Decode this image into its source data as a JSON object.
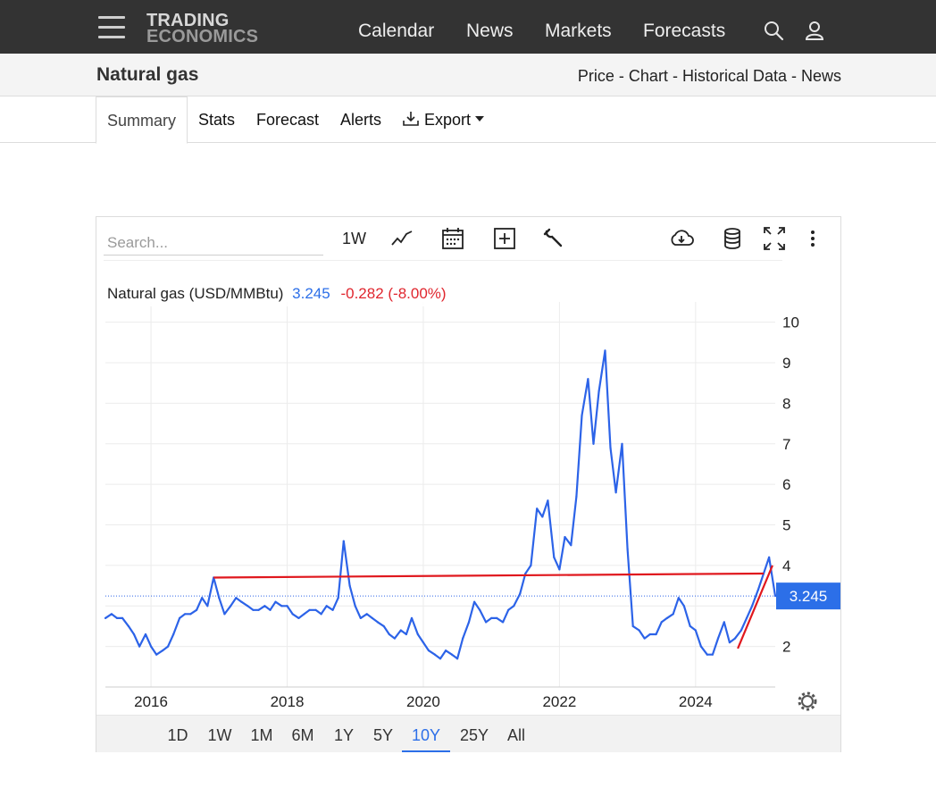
{
  "header": {
    "logo_line1": "TRADING",
    "logo_line2": "ECONOMICS",
    "nav": [
      {
        "label": "Calendar"
      },
      {
        "label": "News"
      },
      {
        "label": "Markets"
      },
      {
        "label": "Forecasts"
      }
    ],
    "icons": [
      "menu-icon",
      "search-icon",
      "user-icon"
    ]
  },
  "subheader": {
    "title": "Natural gas",
    "links": [
      "Price",
      "Chart",
      "Historical Data",
      "News"
    ],
    "separator": " - "
  },
  "tabs": [
    {
      "label": "Summary",
      "active": true
    },
    {
      "label": "Stats"
    },
    {
      "label": "Forecast"
    },
    {
      "label": "Alerts"
    },
    {
      "label": "Export"
    }
  ],
  "toolbar": {
    "search_placeholder": "Search...",
    "interval_label": "1W",
    "icons": [
      "line-chart-icon",
      "calendar-icon",
      "add-icon",
      "wrench-icon",
      "cloud-download-icon",
      "database-icon",
      "fullscreen-icon",
      "more-icon"
    ]
  },
  "legend": {
    "name": "Natural gas (USD/MMBtu)",
    "price": "3.245",
    "change": "-0.282 (-8.00%)"
  },
  "price_tag": "3.245",
  "colors": {
    "series": "#2c63e8",
    "trendline": "#e0181e",
    "negative": "#e0262e",
    "accent": "#2c6fe8",
    "topbar": "#333333"
  },
  "ranges": [
    {
      "label": "1D"
    },
    {
      "label": "1W"
    },
    {
      "label": "1M"
    },
    {
      "label": "6M"
    },
    {
      "label": "1Y"
    },
    {
      "label": "5Y"
    },
    {
      "label": "10Y",
      "active": true
    },
    {
      "label": "25Y"
    },
    {
      "label": "All"
    }
  ],
  "chart_data": {
    "type": "line",
    "title": "Natural gas (USD/MMBtu)",
    "xlabel": "",
    "ylabel": "",
    "x_ticks": [
      "2016",
      "2018",
      "2020",
      "2022",
      "2024"
    ],
    "y_ticks": [
      2,
      4,
      5,
      6,
      7,
      8,
      9,
      10
    ],
    "xlim": [
      2015.33,
      2025.17
    ],
    "ylim": [
      1.0,
      10.5
    ],
    "grid": true,
    "legend_position": "top-left",
    "series": [
      {
        "name": "Natural gas (USD/MMBtu)",
        "x": [
          2015.33,
          2015.42,
          2015.5,
          2015.58,
          2015.67,
          2015.75,
          2015.83,
          2015.92,
          2016.0,
          2016.08,
          2016.17,
          2016.25,
          2016.33,
          2016.42,
          2016.5,
          2016.58,
          2016.67,
          2016.75,
          2016.83,
          2016.92,
          2017.0,
          2017.08,
          2017.17,
          2017.25,
          2017.33,
          2017.42,
          2017.5,
          2017.58,
          2017.67,
          2017.75,
          2017.83,
          2017.92,
          2018.0,
          2018.08,
          2018.17,
          2018.25,
          2018.33,
          2018.42,
          2018.5,
          2018.58,
          2018.67,
          2018.75,
          2018.83,
          2018.92,
          2019.0,
          2019.08,
          2019.17,
          2019.25,
          2019.33,
          2019.42,
          2019.5,
          2019.58,
          2019.67,
          2019.75,
          2019.83,
          2019.92,
          2020.0,
          2020.08,
          2020.17,
          2020.25,
          2020.33,
          2020.42,
          2020.5,
          2020.58,
          2020.67,
          2020.75,
          2020.83,
          2020.92,
          2021.0,
          2021.08,
          2021.17,
          2021.25,
          2021.33,
          2021.42,
          2021.5,
          2021.58,
          2021.67,
          2021.75,
          2021.83,
          2021.92,
          2022.0,
          2022.08,
          2022.17,
          2022.25,
          2022.33,
          2022.42,
          2022.5,
          2022.58,
          2022.67,
          2022.75,
          2022.83,
          2022.92,
          2023.0,
          2023.08,
          2023.17,
          2023.25,
          2023.33,
          2023.42,
          2023.5,
          2023.58,
          2023.67,
          2023.75,
          2023.83,
          2023.92,
          2024.0,
          2024.08,
          2024.17,
          2024.25,
          2024.33,
          2024.42,
          2024.5,
          2024.58,
          2024.67,
          2024.75,
          2024.83,
          2024.92,
          2025.0,
          2025.08,
          2025.17
        ],
        "values": [
          2.7,
          2.8,
          2.7,
          2.7,
          2.5,
          2.3,
          2.0,
          2.3,
          2.0,
          1.8,
          1.9,
          2.0,
          2.3,
          2.7,
          2.8,
          2.8,
          2.9,
          3.2,
          3.0,
          3.7,
          3.2,
          2.8,
          3.0,
          3.2,
          3.1,
          3.0,
          2.9,
          2.9,
          3.0,
          2.9,
          3.1,
          3.0,
          3.0,
          2.8,
          2.7,
          2.8,
          2.9,
          2.9,
          2.8,
          3.0,
          2.9,
          3.2,
          4.6,
          3.5,
          3.0,
          2.7,
          2.8,
          2.7,
          2.6,
          2.5,
          2.3,
          2.2,
          2.4,
          2.3,
          2.7,
          2.3,
          2.1,
          1.9,
          1.8,
          1.7,
          1.9,
          1.8,
          1.7,
          2.2,
          2.6,
          3.1,
          2.9,
          2.6,
          2.7,
          2.7,
          2.6,
          2.9,
          3.0,
          3.3,
          3.8,
          4.0,
          5.4,
          5.2,
          5.6,
          4.2,
          3.9,
          4.7,
          4.5,
          5.7,
          7.7,
          8.6,
          7.0,
          8.3,
          9.3,
          6.9,
          5.8,
          7.0,
          4.4,
          2.5,
          2.4,
          2.2,
          2.3,
          2.3,
          2.6,
          2.7,
          2.8,
          3.2,
          3.0,
          2.5,
          2.4,
          2.0,
          1.8,
          1.8,
          2.2,
          2.6,
          2.1,
          2.2,
          2.4,
          2.7,
          3.0,
          3.4,
          3.8,
          4.2,
          3.245
        ]
      }
    ],
    "trendlines": [
      {
        "x": [
          2016.92,
          2025.0
        ],
        "values": [
          3.7,
          3.8
        ]
      },
      {
        "x": [
          2024.62,
          2025.13
        ],
        "values": [
          1.95,
          4.0
        ]
      }
    ]
  }
}
